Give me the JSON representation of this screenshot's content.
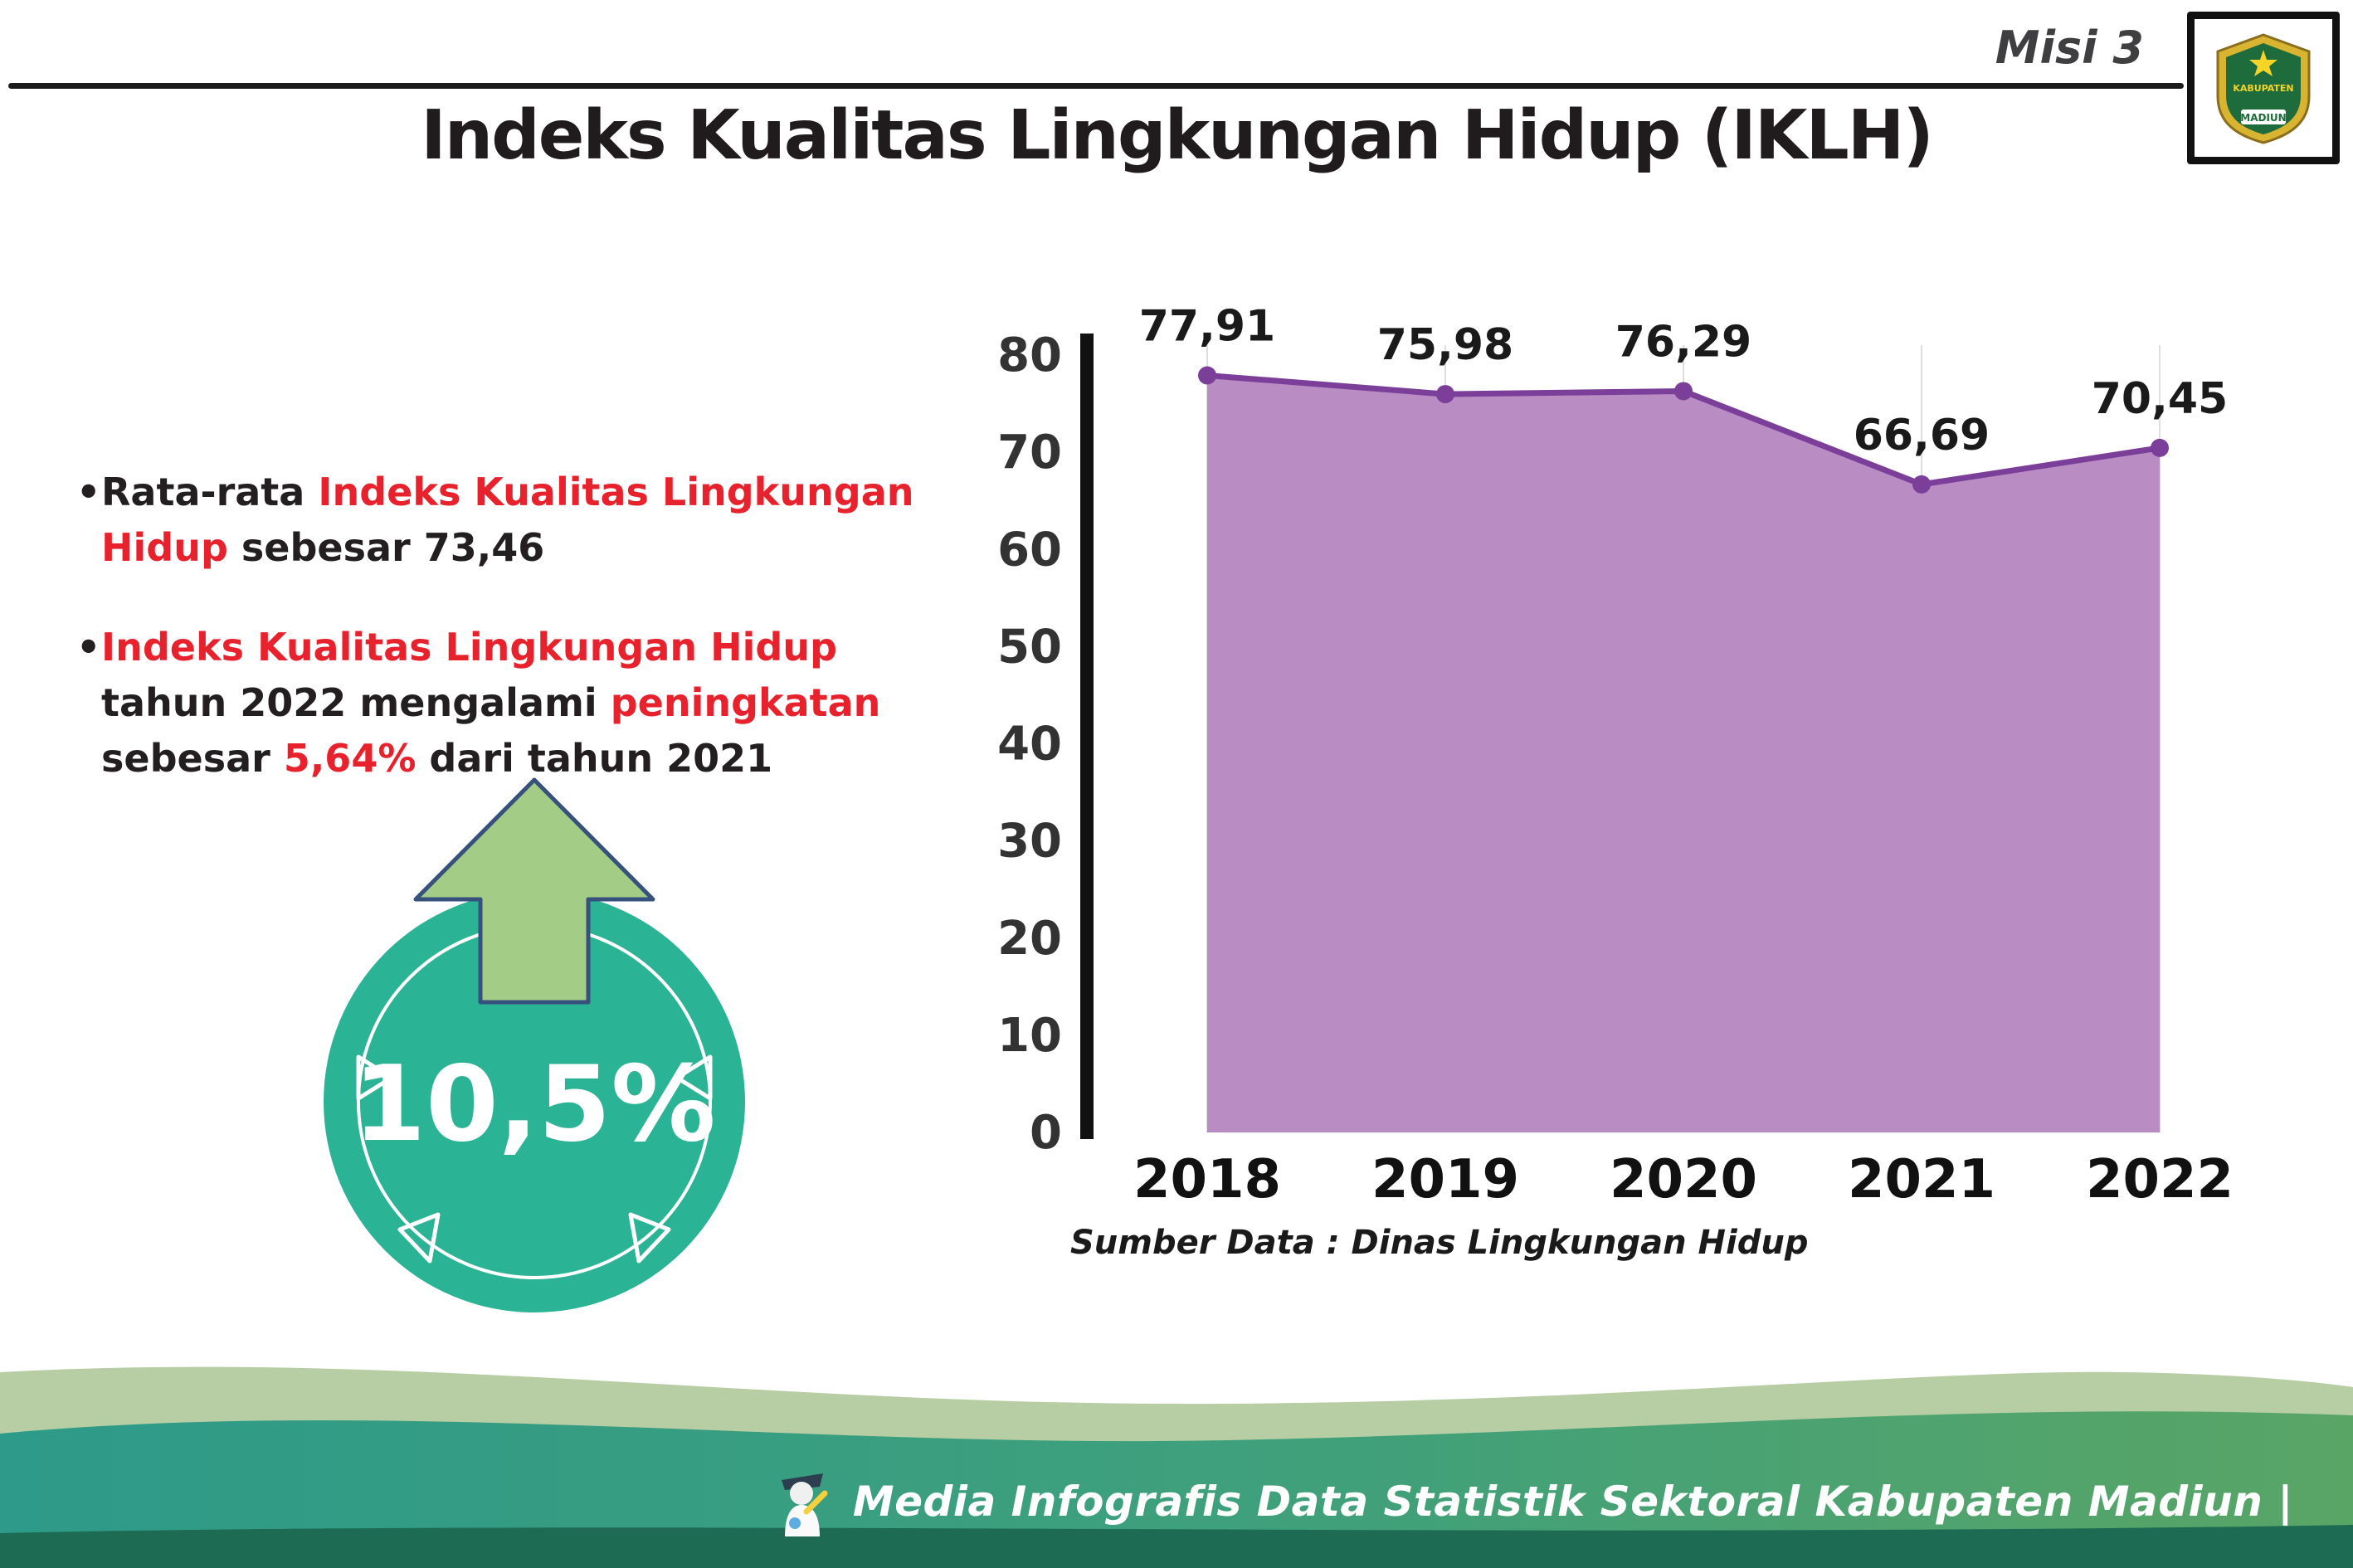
{
  "header": {
    "misi_label": "Misi 3",
    "emblem": {
      "top_text": "KABUPATEN",
      "bottom_text": "MADIUN"
    }
  },
  "title": "Indeks Kualitas Lingkungan Hidup (IKLH)",
  "bullets": [
    {
      "segments": [
        {
          "text": "Rata-rata ",
          "color": "black"
        },
        {
          "text": "Indeks Kualitas Lingkungan Hidup",
          "color": "red"
        },
        {
          "text": " sebesar 73,46",
          "color": "black"
        }
      ]
    },
    {
      "segments": [
        {
          "text": "Indeks Kualitas Lingkungan Hidup",
          "color": "red"
        },
        {
          "text": " tahun 2022 mengalami ",
          "color": "black"
        },
        {
          "text": "peningkatan",
          "color": "red"
        },
        {
          "text": " sebesar ",
          "color": "black"
        },
        {
          "text": "5,64%",
          "color": "red"
        },
        {
          "text": " dari tahun 2021",
          "color": "black"
        }
      ]
    }
  ],
  "badge": {
    "value": "10,5%",
    "icon": "up-arrow-icon",
    "circle_color": "#2ab394",
    "arrow_color": "#a3cd86"
  },
  "chart_data": {
    "type": "area",
    "categories": [
      "2018",
      "2019",
      "2020",
      "2021",
      "2022"
    ],
    "values": [
      77.91,
      75.98,
      76.29,
      66.69,
      70.45
    ],
    "value_labels": [
      "77,91",
      "75,98",
      "76,29",
      "66,69",
      "70,45"
    ],
    "title": "",
    "xlabel": "",
    "ylabel": "",
    "ylim": [
      0,
      80
    ],
    "yticks": [
      0,
      10,
      20,
      30,
      40,
      50,
      60,
      70,
      80
    ],
    "grid": "vertical-faint",
    "legend": false,
    "source": "Sumber Data : Dinas Lingkungan Hidup",
    "colors": {
      "area": "#b98cc4",
      "line": "#7b3f9a",
      "marker": "#7b3f9a"
    }
  },
  "footer": {
    "text": "Media Infografis Data Statistik Sektoral Kabupaten Madiun |"
  },
  "colors": {
    "accent_red": "#e8222d",
    "teal_badge": "#2ab394",
    "wave_sage": "#b7cda3",
    "wave_teal": "#2e9a89",
    "wave_green": "#59a566",
    "wave_dark": "#1c6b52"
  }
}
